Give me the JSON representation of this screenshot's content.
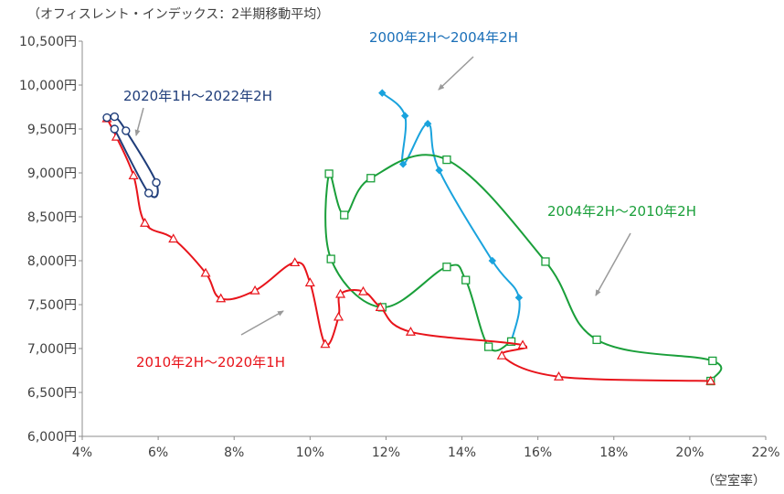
{
  "chart_data": {
    "type": "scatter",
    "title": "（オフィスレント・インデックス：2半期移動平均）",
    "xlabel": "（空室率）",
    "ylabel": "",
    "xlim": [
      0.04,
      0.22
    ],
    "ylim": [
      6000,
      10500
    ],
    "x_ticks": [
      "4%",
      "6%",
      "8%",
      "10%",
      "12%",
      "14%",
      "16%",
      "18%",
      "20%",
      "22%"
    ],
    "y_ticks": [
      "6,000円",
      "6,500円",
      "7,000円",
      "7,500円",
      "8,000円",
      "8,500円",
      "9,000円",
      "9,500円",
      "10,000円",
      "10,500円"
    ],
    "grid": false,
    "series": [
      {
        "name": "2000年2H～2004年2H",
        "color": "#1aa3dd",
        "marker": "diamond",
        "points": [
          {
            "x": 0.119,
            "y": 9910
          },
          {
            "x": 0.125,
            "y": 9650
          },
          {
            "x": 0.1245,
            "y": 9100
          },
          {
            "x": 0.131,
            "y": 9560
          },
          {
            "x": 0.134,
            "y": 9030
          },
          {
            "x": 0.148,
            "y": 8000
          },
          {
            "x": 0.155,
            "y": 7580
          },
          {
            "x": 0.153,
            "y": 7080
          }
        ]
      },
      {
        "name": "2004年2H～2010年2H",
        "color": "#1a9f3a",
        "marker": "square",
        "points": [
          {
            "x": 0.153,
            "y": 7080
          },
          {
            "x": 0.147,
            "y": 7020
          },
          {
            "x": 0.141,
            "y": 7780
          },
          {
            "x": 0.136,
            "y": 7930
          },
          {
            "x": 0.119,
            "y": 7470
          },
          {
            "x": 0.1055,
            "y": 8020
          },
          {
            "x": 0.105,
            "y": 8990
          },
          {
            "x": 0.109,
            "y": 8520
          },
          {
            "x": 0.116,
            "y": 8940
          },
          {
            "x": 0.136,
            "y": 9150
          },
          {
            "x": 0.162,
            "y": 7990
          },
          {
            "x": 0.1755,
            "y": 7100
          },
          {
            "x": 0.206,
            "y": 6860
          },
          {
            "x": 0.2055,
            "y": 6630
          }
        ]
      },
      {
        "name": "2010年2H～2020年1H",
        "color": "#e8141b",
        "marker": "triangle",
        "points": [
          {
            "x": 0.2055,
            "y": 6630
          },
          {
            "x": 0.1655,
            "y": 6680
          },
          {
            "x": 0.1505,
            "y": 6920
          },
          {
            "x": 0.156,
            "y": 7040
          },
          {
            "x": 0.1265,
            "y": 7190
          },
          {
            "x": 0.1185,
            "y": 7470
          },
          {
            "x": 0.114,
            "y": 7650
          },
          {
            "x": 0.108,
            "y": 7620
          },
          {
            "x": 0.1075,
            "y": 7360
          },
          {
            "x": 0.104,
            "y": 7050
          },
          {
            "x": 0.1,
            "y": 7750
          },
          {
            "x": 0.096,
            "y": 7980
          },
          {
            "x": 0.0855,
            "y": 7660
          },
          {
            "x": 0.0765,
            "y": 7570
          },
          {
            "x": 0.0725,
            "y": 7860
          },
          {
            "x": 0.064,
            "y": 8250
          },
          {
            "x": 0.0565,
            "y": 8430
          },
          {
            "x": 0.0535,
            "y": 8970
          },
          {
            "x": 0.049,
            "y": 9410
          },
          {
            "x": 0.0465,
            "y": 9620
          }
        ]
      },
      {
        "name": "2020年1H～2022年2H",
        "color": "#1f3d7a",
        "marker": "circle",
        "points": [
          {
            "x": 0.0465,
            "y": 9630
          },
          {
            "x": 0.0485,
            "y": 9640
          },
          {
            "x": 0.0515,
            "y": 9480
          },
          {
            "x": 0.0595,
            "y": 8890
          },
          {
            "x": 0.0575,
            "y": 8770
          },
          {
            "x": 0.0485,
            "y": 9500
          }
        ]
      }
    ],
    "annotations": [
      {
        "text": "2000年2H～2004年2H",
        "color": "#1a6fb8"
      },
      {
        "text": "2004年2H～2010年2H",
        "color": "#1a9f3a"
      },
      {
        "text": "2010年2H～2020年1H",
        "color": "#e8141b"
      },
      {
        "text": "2020年1H～2022年2H",
        "color": "#1f3d7a"
      }
    ]
  }
}
